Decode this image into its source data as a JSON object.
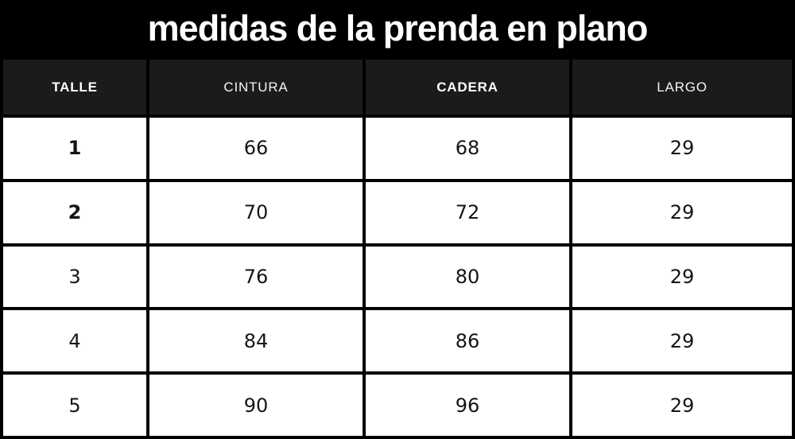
{
  "title": "medidas de la prenda en plano",
  "colors": {
    "title_bar_bg": "#000000",
    "header_bg": "#1b1b1b",
    "border": "#000000",
    "row_bg": "#ffffff",
    "header_text": "#ffffff",
    "body_text": "#151515"
  },
  "chart_data": {
    "type": "table",
    "title": "medidas de la prenda en plano",
    "columns": [
      {
        "key": "talle",
        "label": "TALLE",
        "bold": true
      },
      {
        "key": "cintura",
        "label": "CINTURA",
        "bold": false
      },
      {
        "key": "cadera",
        "label": "CADERA",
        "bold": true
      },
      {
        "key": "largo",
        "label": "LARGO",
        "bold": false
      }
    ],
    "rows": [
      {
        "talle": "1",
        "cintura": "66",
        "cadera": "68",
        "largo": "29",
        "talle_bold": true
      },
      {
        "talle": "2",
        "cintura": "70",
        "cadera": "72",
        "largo": "29",
        "talle_bold": true
      },
      {
        "talle": "3",
        "cintura": "76",
        "cadera": "80",
        "largo": "29",
        "talle_bold": false
      },
      {
        "talle": "4",
        "cintura": "84",
        "cadera": "86",
        "largo": "29",
        "talle_bold": false
      },
      {
        "talle": "5",
        "cintura": "90",
        "cadera": "96",
        "largo": "29",
        "talle_bold": false
      }
    ]
  }
}
